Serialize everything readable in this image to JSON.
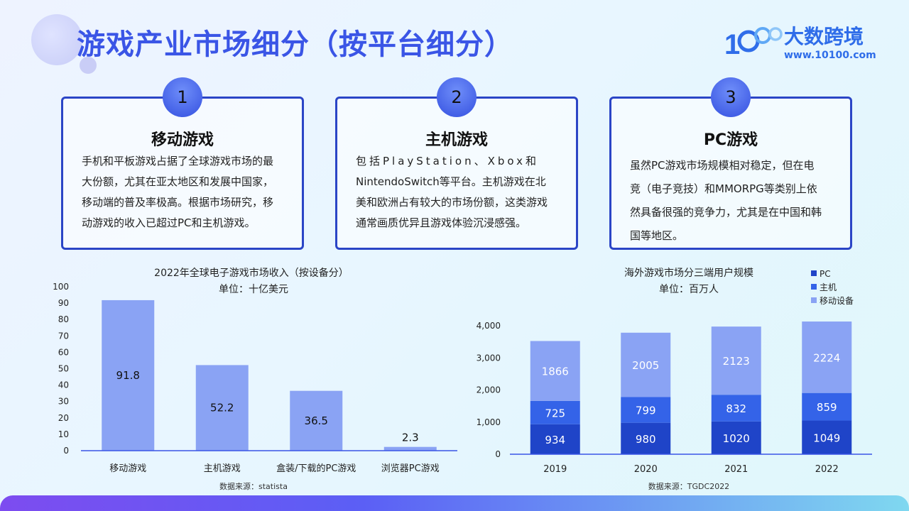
{
  "title": "游戏产业市场细分（按平台细分）",
  "logo": {
    "name": "大数跨境",
    "url": "www.10100.com",
    "mark": "10100"
  },
  "colors": {
    "accent": "#3a55e6",
    "card_border": "#2b45c6",
    "bar_left": "#8aa3f4",
    "pc": "#1f44c8",
    "console": "#3463e8",
    "mobile": "#8aa3f4"
  },
  "cards": [
    {
      "num": "1",
      "title": "移动游戏",
      "lines": [
        "手机和平板游戏占据了全球游戏市场的最",
        "大份额，尤其在亚太地区和发展中国家，",
        "移动端的普及率极高。根据市场研究，移",
        "动游戏的收入已超过PC和主机游戏。"
      ]
    },
    {
      "num": "2",
      "title": "主机游戏",
      "lines": [
        "包括PlayStation、Xbox和",
        "NintendoSwitch等平台。主机游戏在北",
        "美和欧洲占有较大的市场份额，这类游戏",
        "通常画质优异且游戏体验沉浸感强。"
      ]
    },
    {
      "num": "3",
      "title": "PC游戏",
      "lines": [
        "虽然PC游戏市场规模相对稳定，但在电",
        "竞（电子竞技）和MMORPG等类别上依",
        "然具备很强的竞争力，尤其是在中国和韩",
        "国等地区。"
      ]
    }
  ],
  "chart_data": [
    {
      "type": "bar",
      "title": "2022年全球电子游戏市场收入（按设备分）",
      "subtitle": "单位：十亿美元",
      "categories": [
        "移动游戏",
        "主机游戏",
        "盒装/下载的PC游戏",
        "浏览器PC游戏"
      ],
      "values": [
        91.8,
        52.2,
        36.5,
        2.3
      ],
      "ylim": [
        0,
        100
      ],
      "yticks": [
        0,
        10,
        20,
        30,
        40,
        50,
        60,
        70,
        80,
        90,
        100
      ],
      "source": "数据来源：statista"
    },
    {
      "type": "bar",
      "stacked": true,
      "title": "海外游戏市场分三端用户规模",
      "subtitle": "单位：百万人",
      "categories": [
        "2019",
        "2020",
        "2021",
        "2022"
      ],
      "series": [
        {
          "name": "PC",
          "values": [
            934,
            980,
            1020,
            1049
          ]
        },
        {
          "name": "主机",
          "values": [
            725,
            799,
            832,
            859
          ]
        },
        {
          "name": "移动设备",
          "values": [
            1866,
            2005,
            2123,
            2224
          ]
        }
      ],
      "ylim": [
        0,
        4500
      ],
      "yticks": [
        0,
        1000,
        2000,
        3000,
        4000
      ],
      "ytick_labels": [
        "0",
        "1,000",
        "2,000",
        "3,000",
        "4,000"
      ],
      "legend": "top-right",
      "source": "数据来源：TGDC2022"
    }
  ]
}
